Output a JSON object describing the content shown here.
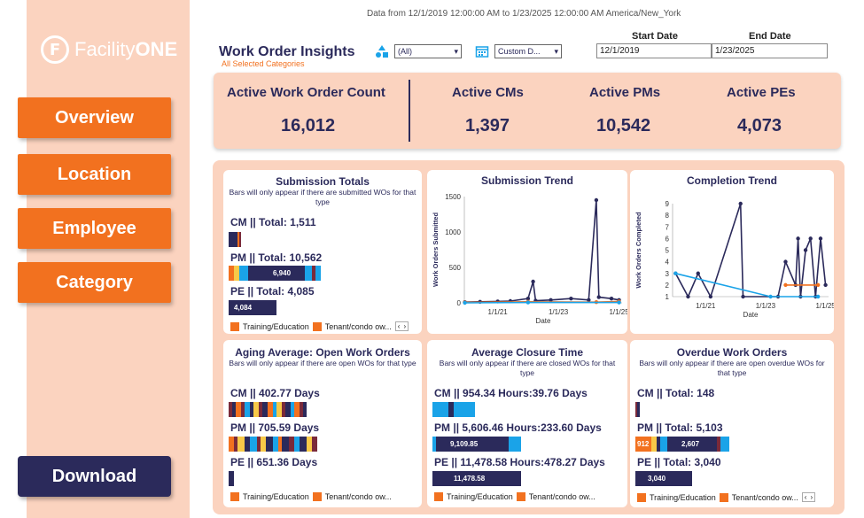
{
  "brand": {
    "prefix": "Facility",
    "suffix": "ONE",
    "mark": "F"
  },
  "nav": {
    "overview": "Overview",
    "location": "Location",
    "employee": "Employee",
    "category": "Category",
    "download": "Download"
  },
  "header": {
    "data_range": "Data from 12/1/2019 12:00:00 AM to 1/23/2025 12:00:00 AM America/New_York",
    "title": "Work Order Insights",
    "subtitle": "All Selected Categories",
    "filter1_value": "(All)",
    "filter2_value": "Custom D...",
    "start_label": "Start Date",
    "end_label": "End Date",
    "start_value": "12/1/2019",
    "end_value": "1/23/2025"
  },
  "kpis": {
    "active_count_label": "Active Work Order Count",
    "active_count": "16,012",
    "cms_label": "Active CMs",
    "cms": "1,397",
    "pms_label": "Active PMs",
    "pms": "10,542",
    "pes_label": "Active PEs",
    "pes": "4,073"
  },
  "cards": {
    "submission_totals": {
      "title": "Submission Totals",
      "note": "Bars will only appear if there are submitted WOs for that type",
      "cm": "CM || Total: 1,511",
      "pm": "PM || Total: 10,562",
      "pe": "PE || Total: 4,085",
      "pm_bar_label": "6,940",
      "pe_bar_label": "4,084",
      "legend1": "Training/Education",
      "legend2": "Tenant/condo ow..."
    },
    "submission_trend": {
      "title": "Submission Trend",
      "ylabel": "Work Orders Submitted",
      "xlabel": "Date"
    },
    "completion_trend": {
      "title": "Completion Trend",
      "ylabel": "Work Orders Completed",
      "xlabel": "Date"
    },
    "aging": {
      "title": "Aging Average: Open Work Orders",
      "note": "Bars will only appear if there are open WOs for that type",
      "cm": "CM || 402.77 Days",
      "pm": "PM || 705.59 Days",
      "pe": "PE || 651.36 Days",
      "legend1": "Training/Education",
      "legend2": "Tenant/condo ow..."
    },
    "closure": {
      "title": "Average Closure Time",
      "note": "Bars will only appear if there are closed WOs for that type",
      "cm": "CM || 954.34 Hours:39.76 Days",
      "pm": "PM || 5,606.46 Hours:233.60 Days",
      "pe": "PE || 11,478.58 Hours:478.27 Days",
      "pm_bar_label": "9,109.85",
      "pe_bar_label": "11,478.58",
      "legend1": "Training/Education",
      "legend2": "Tenant/condo ow..."
    },
    "overdue": {
      "title": "Overdue Work Orders",
      "note": "Bars will only appear if there are open overdue WOs for that type",
      "cm": "CM || Total: 148",
      "pm": "PM || Total: 5,103",
      "pe": "PE || Total: 3,040",
      "pm_bar_label1": "912",
      "pm_bar_label2": "2,607",
      "pe_bar_label": "3,040",
      "legend1": "Training/Education",
      "legend2": "Tenant/condo ow..."
    }
  },
  "chart_data": [
    {
      "type": "line",
      "title": "Submission Trend",
      "xlabel": "Date",
      "ylabel": "Work Orders Submitted",
      "yticks": [
        "0",
        "500",
        "1000",
        "1500"
      ],
      "xticks": [
        "1/1/21",
        "1/1/23",
        "1/1/25"
      ],
      "ylim": [
        0,
        1500
      ],
      "series": [
        {
          "color": "#2b2a5b",
          "values": [
            {
              "x": "2019-12",
              "y": 10
            },
            {
              "x": "2020-06",
              "y": 15
            },
            {
              "x": "2021-01",
              "y": 20
            },
            {
              "x": "2021-06",
              "y": 25
            },
            {
              "x": "2022-01",
              "y": 60
            },
            {
              "x": "2022-03",
              "y": 300
            },
            {
              "x": "2022-04",
              "y": 30
            },
            {
              "x": "2022-10",
              "y": 40
            },
            {
              "x": "2023-06",
              "y": 60
            },
            {
              "x": "2024-01",
              "y": 40
            },
            {
              "x": "2024-04",
              "y": 1450
            },
            {
              "x": "2024-05",
              "y": 80
            },
            {
              "x": "2024-10",
              "y": 60
            },
            {
              "x": "2025-01",
              "y": 40
            }
          ]
        },
        {
          "color": "#f2711f",
          "values": [
            {
              "x": "2019-12",
              "y": 5
            },
            {
              "x": "2022-01",
              "y": 15
            },
            {
              "x": "2024-04",
              "y": 10
            },
            {
              "x": "2025-01",
              "y": 20
            }
          ]
        },
        {
          "color": "#1aa3e8",
          "values": [
            {
              "x": "2019-12",
              "y": 0
            },
            {
              "x": "2022-01",
              "y": 5
            },
            {
              "x": "2025-01",
              "y": 5
            }
          ]
        }
      ]
    },
    {
      "type": "line",
      "title": "Completion Trend",
      "xlabel": "Date",
      "ylabel": "Work Orders Completed",
      "yticks": [
        "1",
        "2",
        "3",
        "4",
        "5",
        "6",
        "7",
        "8",
        "9"
      ],
      "xticks": [
        "1/1/21",
        "1/1/23",
        "1/1/25"
      ],
      "ylim": [
        1,
        9
      ],
      "series": [
        {
          "color": "#2b2a5b",
          "values": [
            {
              "x": "2020-01",
              "y": 3
            },
            {
              "x": "2020-06",
              "y": 1
            },
            {
              "x": "2020-10",
              "y": 3
            },
            {
              "x": "2021-03",
              "y": 1
            },
            {
              "x": "2022-03",
              "y": 9
            },
            {
              "x": "2022-04",
              "y": 1
            },
            {
              "x": "2023-06",
              "y": 1
            },
            {
              "x": "2023-09",
              "y": 4
            },
            {
              "x": "2024-01",
              "y": 2
            },
            {
              "x": "2024-02",
              "y": 6
            },
            {
              "x": "2024-03",
              "y": 1
            },
            {
              "x": "2024-05",
              "y": 5
            },
            {
              "x": "2024-07",
              "y": 6
            },
            {
              "x": "2024-09",
              "y": 1
            },
            {
              "x": "2024-11",
              "y": 6
            },
            {
              "x": "2025-01",
              "y": 2
            }
          ]
        },
        {
          "color": "#1aa3e8",
          "values": [
            {
              "x": "2020-01",
              "y": 3
            },
            {
              "x": "2023-03",
              "y": 1
            },
            {
              "x": "2024-10",
              "y": 1
            }
          ]
        },
        {
          "color": "#f2711f",
          "values": [
            {
              "x": "2023-09",
              "y": 2
            },
            {
              "x": "2024-10",
              "y": 2
            }
          ]
        }
      ]
    }
  ]
}
